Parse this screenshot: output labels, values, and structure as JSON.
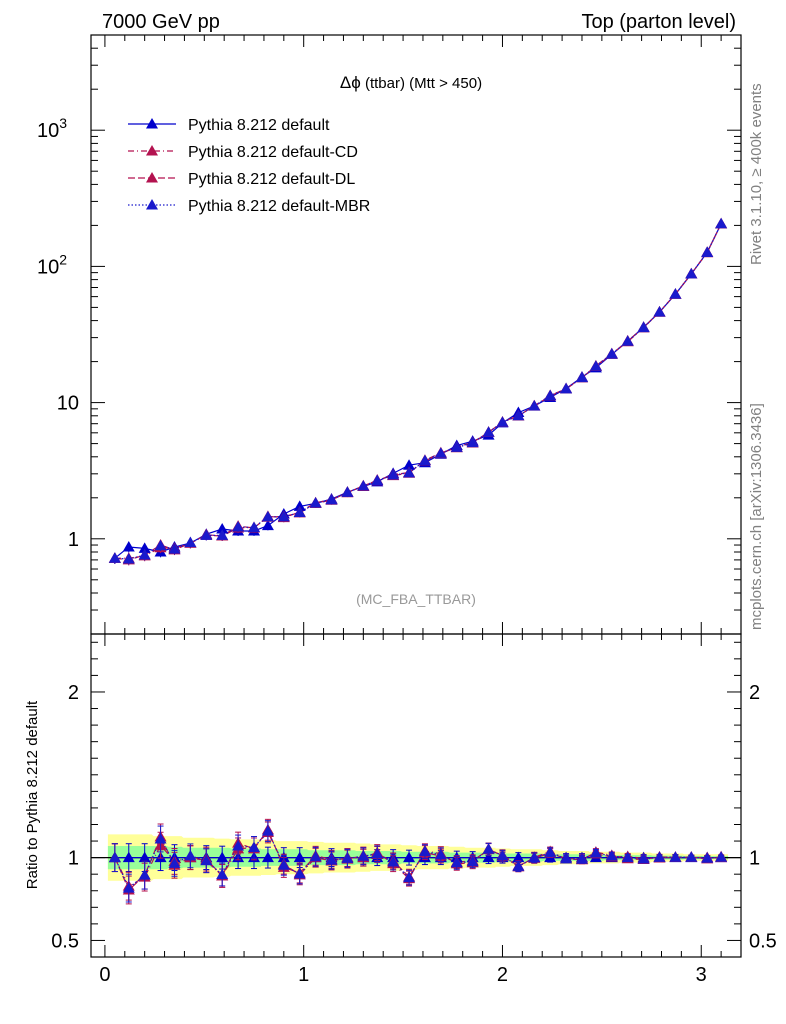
{
  "header": {
    "left": "7000 GeV pp",
    "right": "Top (parton level)"
  },
  "side_labels": {
    "rivet": "Rivet 3.1.10, ≥ 400k events",
    "mcplots": "mcplots.cern.ch [arXiv:1306.3436]"
  },
  "plot_title_main": "Δϕ",
  "plot_title_rest": " (ttbar) (Mtt > 450)",
  "analysis_tag": "(MC_FBA_TTBAR)",
  "ratio_ylabel": "Ratio to Pythia 8.212 default",
  "colors": {
    "default": "#0000cc",
    "cd": "#b3124f",
    "dl": "#b3124f",
    "mbr": "#1a1acc",
    "band_inner": "#99ff99",
    "band_outer": "#ffff99"
  },
  "chart_data": {
    "type": "line",
    "x": [
      0.05,
      0.12,
      0.2,
      0.28,
      0.35,
      0.43,
      0.51,
      0.59,
      0.67,
      0.75,
      0.82,
      0.9,
      0.98,
      1.06,
      1.14,
      1.22,
      1.3,
      1.37,
      1.45,
      1.53,
      1.61,
      1.69,
      1.77,
      1.85,
      1.93,
      2.0,
      2.08,
      2.16,
      2.24,
      2.32,
      2.4,
      2.47,
      2.55,
      2.63,
      2.71,
      2.79,
      2.87,
      2.95,
      3.03,
      3.1
    ],
    "series": [
      {
        "name": "Pythia 8.212 default",
        "color": "#0000cc",
        "values": [
          0.72,
          0.87,
          0.85,
          0.8,
          0.87,
          0.93,
          1.08,
          1.18,
          1.14,
          1.14,
          1.25,
          1.52,
          1.73,
          1.82,
          1.96,
          2.2,
          2.42,
          2.62,
          3.02,
          3.47,
          3.62,
          4.18,
          4.84,
          5.21,
          5.77,
          7.1,
          8.45,
          9.46,
          10.9,
          12.7,
          15.4,
          18.0,
          22.6,
          28.2,
          35.8,
          46.2,
          62.4,
          88.0,
          127,
          205
        ]
      },
      {
        "name": "Pythia 8.212 default-CD",
        "color": "#b3124f",
        "values": [
          0.72,
          0.72,
          0.75,
          0.86,
          0.85,
          0.93,
          1.06,
          1.05,
          1.2,
          1.21,
          1.44,
          1.46,
          1.55,
          1.82,
          1.92,
          2.2,
          2.42,
          2.7,
          2.91,
          3.03,
          3.77,
          4.28,
          4.66,
          5.05,
          6.07,
          7.16,
          7.98,
          9.48,
          11.3,
          12.6,
          15.2,
          18.6,
          22.9,
          28.0,
          35.4,
          46.4,
          62.5,
          88.3,
          126,
          206
        ]
      },
      {
        "name": "Pythia 8.212 default-DL",
        "color": "#b3124f",
        "values": [
          0.72,
          0.7,
          0.76,
          0.9,
          0.83,
          0.93,
          1.07,
          1.05,
          1.24,
          1.2,
          1.46,
          1.43,
          1.57,
          1.84,
          1.94,
          2.18,
          2.45,
          2.67,
          2.96,
          3.07,
          3.73,
          4.22,
          4.71,
          5.11,
          6.05,
          7.2,
          8.03,
          9.42,
          11.2,
          12.6,
          15.3,
          18.4,
          22.7,
          28.4,
          35.6,
          46.1,
          62.6,
          88.1,
          127,
          205
        ]
      },
      {
        "name": "Pythia 8.212 default-MBR",
        "color": "#1a1acc",
        "values": [
          0.72,
          0.71,
          0.76,
          0.89,
          0.84,
          0.94,
          1.06,
          1.06,
          1.22,
          1.21,
          1.45,
          1.45,
          1.56,
          1.83,
          1.93,
          2.19,
          2.44,
          2.68,
          2.94,
          3.05,
          3.75,
          4.25,
          4.69,
          5.08,
          6.06,
          7.18,
          8.0,
          9.45,
          11.25,
          12.6,
          15.25,
          18.5,
          22.8,
          28.2,
          35.5,
          46.25,
          62.55,
          88.2,
          126.5,
          205.5
        ]
      }
    ],
    "ratio": {
      "ylabel": "Ratio to Pythia 8.212 default",
      "ylim": [
        0.4,
        2.35
      ],
      "yticks": [
        0.5,
        1,
        2
      ],
      "band_inner": [
        0.07,
        0.07,
        0.07,
        0.07,
        0.065,
        0.06,
        0.06,
        0.06,
        0.055,
        0.055,
        0.05,
        0.05,
        0.05,
        0.045,
        0.045,
        0.045,
        0.04,
        0.04,
        0.04,
        0.035,
        0.035,
        0.035,
        0.03,
        0.03,
        0.03,
        0.025,
        0.025,
        0.025,
        0.02,
        0.02,
        0.02,
        0.02,
        0.015,
        0.015,
        0.015,
        0.012,
        0.012,
        0.01,
        0.01,
        0.01
      ],
      "band_outer": [
        0.14,
        0.14,
        0.14,
        0.13,
        0.13,
        0.12,
        0.12,
        0.115,
        0.11,
        0.11,
        0.105,
        0.1,
        0.1,
        0.095,
        0.09,
        0.09,
        0.085,
        0.08,
        0.08,
        0.075,
        0.07,
        0.07,
        0.065,
        0.06,
        0.06,
        0.055,
        0.05,
        0.05,
        0.045,
        0.04,
        0.04,
        0.035,
        0.035,
        0.03,
        0.03,
        0.025,
        0.025,
        0.02,
        0.02,
        0.02
      ]
    },
    "xlim": [
      -0.07,
      3.2
    ],
    "xticks": [
      0,
      1,
      2,
      3
    ],
    "ylim": [
      0.2,
      5000
    ],
    "yscale": "log",
    "yticks": [
      {
        "value": 1,
        "label": "1"
      },
      {
        "value": 10,
        "label": "10"
      },
      {
        "value": 100,
        "label": "10",
        "sup": "2"
      },
      {
        "value": 1000,
        "label": "10",
        "sup": "3"
      }
    ],
    "legend_position": "top-left"
  }
}
